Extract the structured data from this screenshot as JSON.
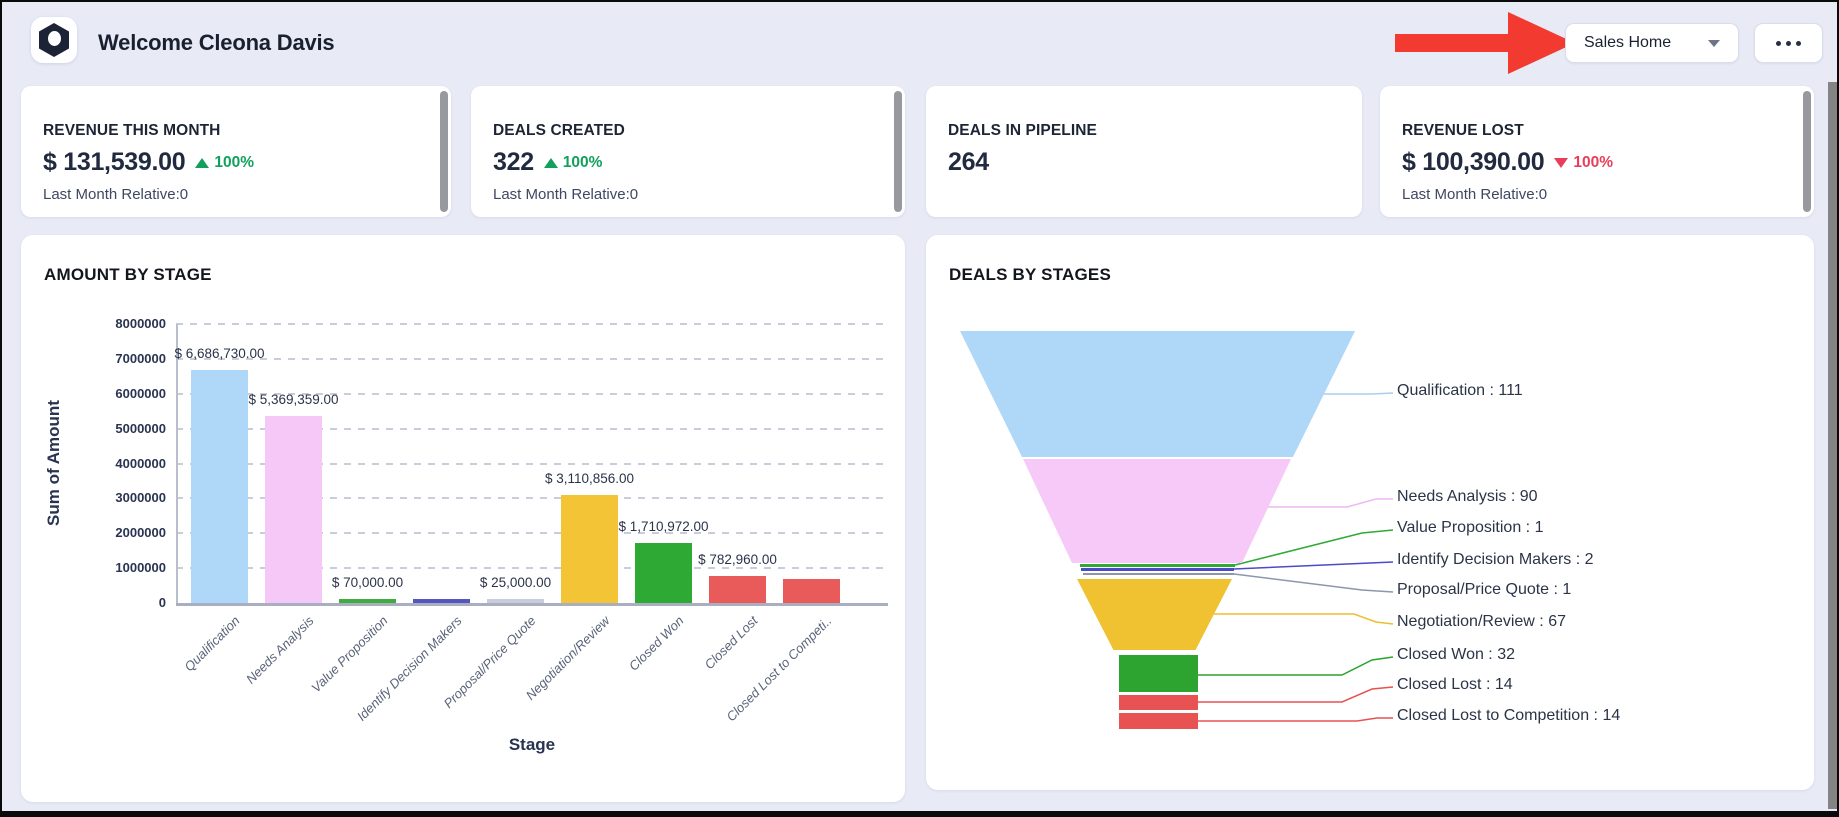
{
  "page": {
    "background": "#E8EAF6",
    "attention_arrow_color": "#F23A30"
  },
  "header": {
    "title": "Welcome Cleona Davis",
    "sales_home_button": {
      "label": "Sales Home",
      "caret_icon": "chevron-down"
    },
    "more_button": {
      "icon": "ellipsis"
    }
  },
  "kpi_cards": [
    {
      "title": "REVENUE THIS MONTH",
      "value": "$ 131,539.00",
      "trend": {
        "direction": "up",
        "text": "100%",
        "color": "#12A05C"
      },
      "relative": "Last Month Relative:0"
    },
    {
      "title": "DEALS CREATED",
      "value": "322",
      "trend": {
        "direction": "up",
        "text": "100%",
        "color": "#12A05C"
      },
      "relative": "Last Month Relative:0"
    },
    {
      "title": "DEALS IN PIPELINE",
      "value": "264",
      "trend": null,
      "relative": null
    },
    {
      "title": "REVENUE LOST",
      "value": "$ 100,390.00",
      "trend": {
        "direction": "down",
        "text": "100%",
        "color": "#E83E59"
      },
      "relative": "Last Month Relative:0"
    }
  ],
  "chart_data": [
    {
      "type": "bar",
      "title": "AMOUNT BY STAGE",
      "xlabel": "Stage",
      "ylabel": "Sum of Amount",
      "ylim": [
        0,
        8000000
      ],
      "grid": "dashed-horizontal",
      "yticks": [
        "0",
        "1000000",
        "2000000",
        "3000000",
        "4000000",
        "5000000",
        "6000000",
        "7000000",
        "8000000"
      ],
      "categories": [
        "Qualification",
        "Needs Analysis",
        "Value Proposition",
        "Identify Decision Makers",
        "Proposal/Price Quote",
        "Negotiation/Review",
        "Closed Won",
        "Closed Lost",
        "Closed Lost to Competi.."
      ],
      "values": [
        6686730,
        5369359,
        70000,
        120000,
        25000,
        3110856,
        1710972,
        782960,
        700000
      ],
      "value_labels": [
        "$ 6,686,730.00",
        "$ 5,369,359.00",
        "$ 70,000.00",
        null,
        "$ 25,000.00",
        "$ 3,110,856.00",
        "$ 1,710,972.00",
        "$ 782,960.00",
        null
      ],
      "colors": [
        "#AFD8F8",
        "#F6C8F7",
        "#3FAC3F",
        "#5356BE",
        "#C9CCDB",
        "#F2C436",
        "#2EA933",
        "#E95B5B",
        "#E95B5B"
      ]
    },
    {
      "type": "funnel",
      "title": "DEALS BY STAGES",
      "legend_position": "right-leader-lines",
      "stages": [
        "Qualification",
        "Needs Analysis",
        "Value Proposition",
        "Identify Decision Makers",
        "Proposal/Price Quote",
        "Negotiation/Review",
        "Closed Won",
        "Closed Lost",
        "Closed Lost to Competition"
      ],
      "values": [
        111,
        90,
        1,
        2,
        1,
        67,
        32,
        14,
        14
      ],
      "labels": [
        "Qualification : 111",
        "Needs Analysis : 90",
        "Value Proposition : 1",
        "Identify Decision Makers : 2",
        "Proposal/Price Quote : 1",
        "Negotiation/Review : 67",
        "Closed Won : 32",
        "Closed Lost : 14",
        "Closed Lost to Competition : 14"
      ],
      "colors": [
        "#AED7F8",
        "#F6C9F8",
        "#2FA838",
        "#4A4ACA",
        "#8D96AB",
        "#F0C231",
        "#2DA42F",
        "#E85252",
        "#E85252"
      ],
      "leader_colors": [
        "#A8CFEF",
        "#EFB8EF",
        "#2FA838",
        "#4A4ACA",
        "#8D96AB",
        "#EFBE30",
        "#2AA32F",
        "#E85252",
        "#E85252"
      ]
    }
  ]
}
